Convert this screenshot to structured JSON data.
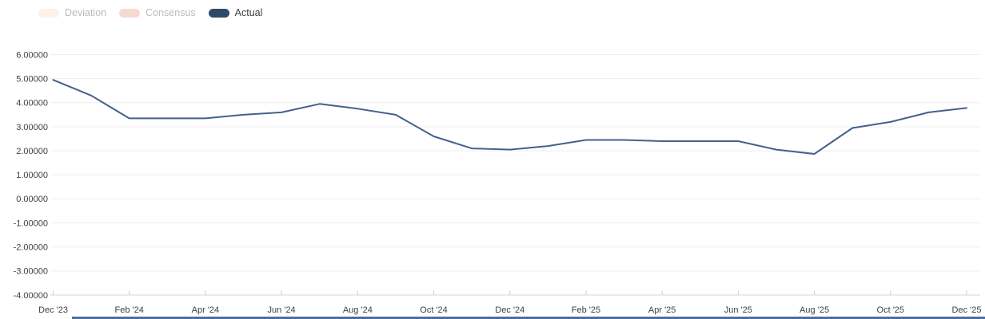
{
  "legend": {
    "items": [
      {
        "label": "Deviation",
        "pill_color": "#fdf1e9",
        "text_color": "#b8bcc2",
        "active": false
      },
      {
        "label": "Consensus",
        "pill_color": "#f7d9d3",
        "text_color": "#b8bcc2",
        "active": false
      },
      {
        "label": "Actual",
        "pill_color": "#2d4a69",
        "text_color": "#3c4043",
        "active": true
      }
    ]
  },
  "chart_data": {
    "type": "line",
    "title": "",
    "xlabel": "",
    "ylabel": "",
    "x": [
      "Dec '23",
      "Jan '24",
      "Feb '24",
      "Mar '24",
      "Apr '24",
      "May '24",
      "Jun '24",
      "Jul '24",
      "Aug '24",
      "Sep '24",
      "Oct '24",
      "Nov '24",
      "Dec '24",
      "Jan '25",
      "Feb '25",
      "Mar '25",
      "Apr '25",
      "May '25",
      "Jun '25",
      "Jul '25",
      "Aug '25",
      "Sep '25",
      "Oct '25",
      "Nov '25",
      "Dec '25"
    ],
    "x_tick_labels": [
      "Dec '23",
      "Feb '24",
      "Apr '24",
      "Jun '24",
      "Aug '24",
      "Oct '24",
      "Dec '24",
      "Feb '25",
      "Apr '25",
      "Jun '25",
      "Aug '25",
      "Oct '25",
      "Dec '25"
    ],
    "y_tick_labels": [
      "6.00000",
      "5.00000",
      "4.00000",
      "3.00000",
      "2.00000",
      "1.00000",
      "0.00000",
      "-1.00000",
      "-2.00000",
      "-3.00000",
      "-4.00000"
    ],
    "ylim": [
      -4,
      6
    ],
    "grid": true,
    "legend_position": "top-left",
    "series": [
      {
        "name": "Actual",
        "color": "#44618c",
        "values": [
          4.95,
          4.3,
          3.35,
          3.35,
          3.35,
          3.5,
          3.6,
          3.95,
          3.75,
          3.5,
          2.6,
          2.1,
          2.05,
          2.2,
          2.45,
          2.45,
          2.4,
          2.4,
          2.4,
          2.05,
          1.87,
          2.95,
          3.2,
          3.6,
          3.78
        ]
      }
    ]
  },
  "colors": {
    "gridline": "#ededee",
    "axis_line": "#d2d5d9",
    "tick": "#c9ccd1",
    "axis_text": "#3c4148",
    "bottom_bar": "#4e6e9e"
  }
}
